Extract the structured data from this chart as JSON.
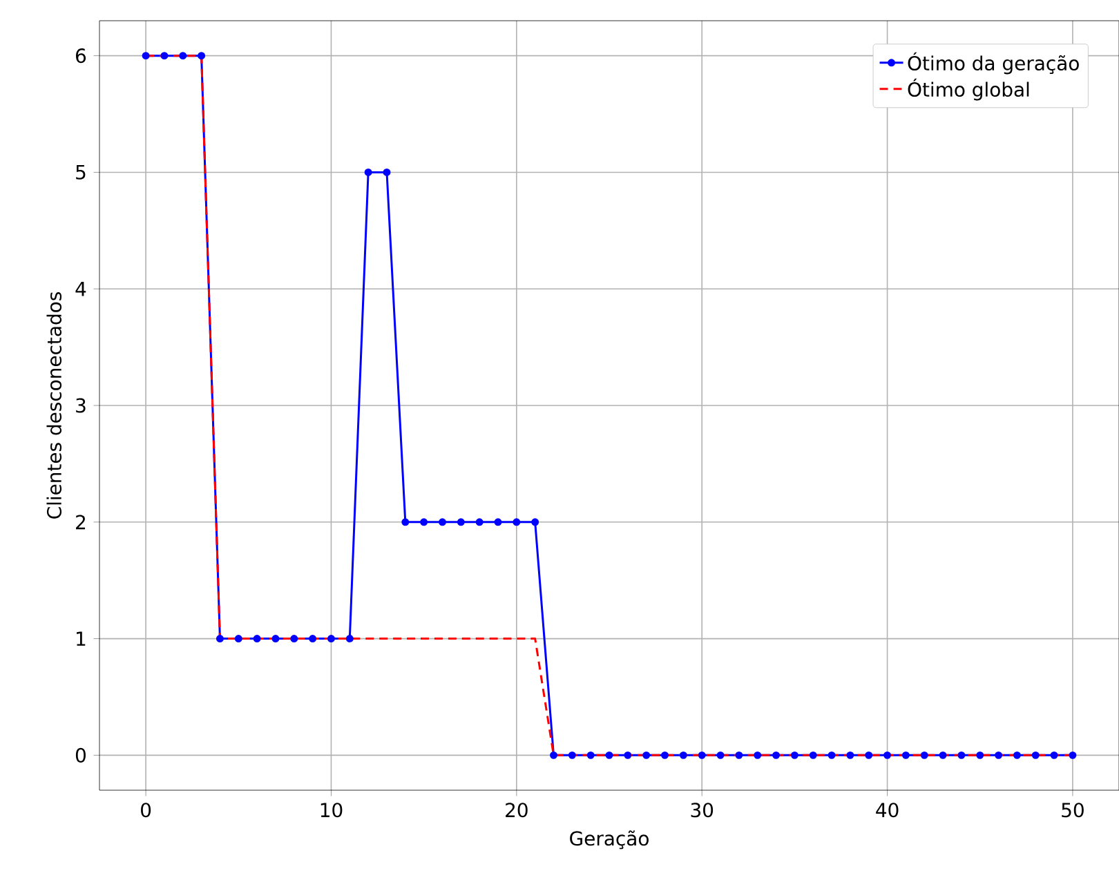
{
  "chart_data": {
    "type": "line",
    "xlabel": "Geração",
    "ylabel": "Clientes desconectados",
    "x": [
      0,
      1,
      2,
      3,
      4,
      5,
      6,
      7,
      8,
      9,
      10,
      11,
      12,
      13,
      14,
      15,
      16,
      17,
      18,
      19,
      20,
      21,
      22,
      23,
      24,
      25,
      26,
      27,
      28,
      29,
      30,
      31,
      32,
      33,
      34,
      35,
      36,
      37,
      38,
      39,
      40,
      41,
      42,
      43,
      44,
      45,
      46,
      47,
      48,
      49,
      50
    ],
    "series": [
      {
        "name": "Ótimo da geração",
        "color": "#0000ff",
        "marker": "circle",
        "line_style": "solid",
        "values": [
          6,
          6,
          6,
          6,
          1,
          1,
          1,
          1,
          1,
          1,
          1,
          1,
          5,
          5,
          2,
          2,
          2,
          2,
          2,
          2,
          2,
          2,
          0,
          0,
          0,
          0,
          0,
          0,
          0,
          0,
          0,
          0,
          0,
          0,
          0,
          0,
          0,
          0,
          0,
          0,
          0,
          0,
          0,
          0,
          0,
          0,
          0,
          0,
          0,
          0,
          0
        ]
      },
      {
        "name": "Ótimo global",
        "color": "#ff0000",
        "marker": "none",
        "line_style": "dashed",
        "values": [
          6,
          6,
          6,
          6,
          1,
          1,
          1,
          1,
          1,
          1,
          1,
          1,
          1,
          1,
          1,
          1,
          1,
          1,
          1,
          1,
          1,
          1,
          0,
          0,
          0,
          0,
          0,
          0,
          0,
          0,
          0,
          0,
          0,
          0,
          0,
          0,
          0,
          0,
          0,
          0,
          0,
          0,
          0,
          0,
          0,
          0,
          0,
          0,
          0,
          0,
          0
        ]
      }
    ],
    "xlim": [
      -2.5,
      52.5
    ],
    "ylim": [
      -0.3,
      6.3
    ],
    "xticks": [
      0,
      10,
      20,
      30,
      40,
      50
    ],
    "yticks": [
      0,
      1,
      2,
      3,
      4,
      5,
      6
    ],
    "grid": true,
    "legend": "top right"
  }
}
